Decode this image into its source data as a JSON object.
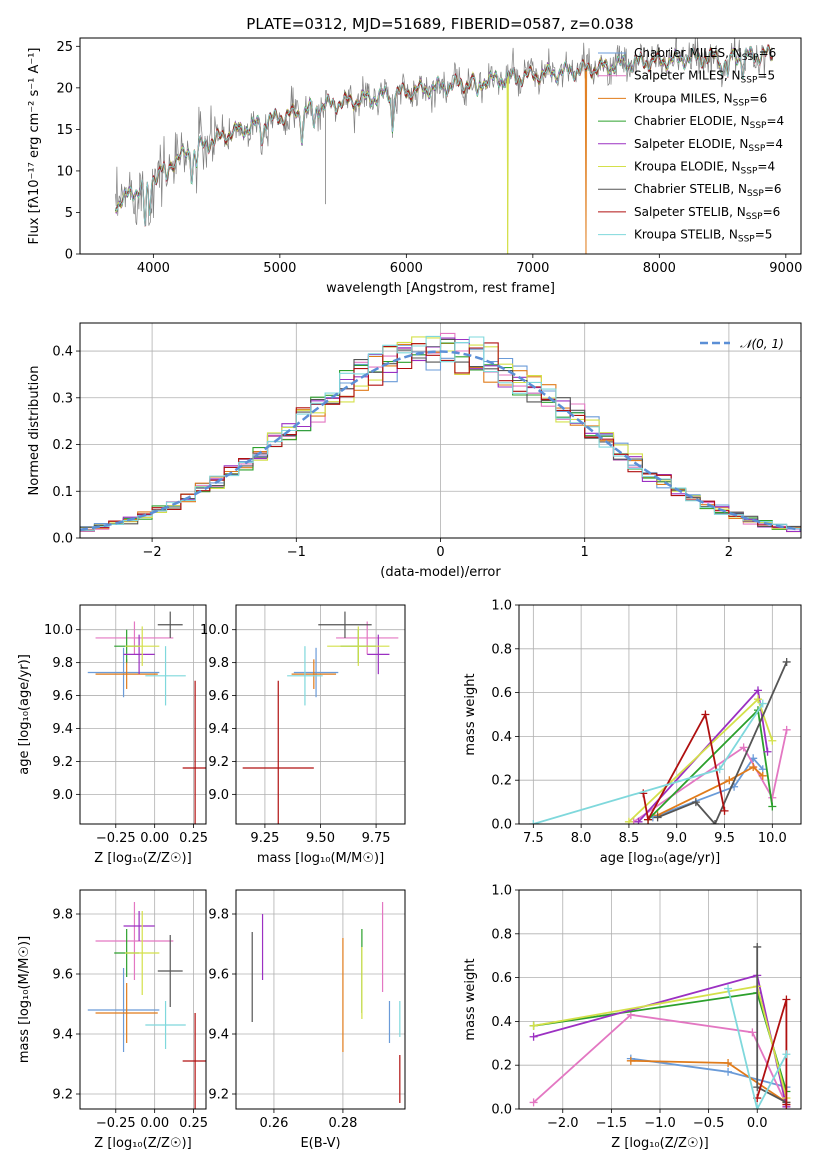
{
  "figure": {
    "title": "PLATE=0312, MJD=51689, FIBERID=0587, z=0.038"
  },
  "colors": {
    "Chabrier MILES": "#6a9bd8",
    "Salpeter MILES": "#e377c2",
    "Kroupa MILES": "#e07b1a",
    "Chabrier ELODIE": "#2ca02c",
    "Salpeter ELODIE": "#9b30c2",
    "Kroupa ELODIE": "#d4e04a",
    "Chabrier STELIB": "#555555",
    "Salpeter STELIB": "#b01010",
    "Kroupa STELIB": "#7fd8dc",
    "data": "#808080",
    "gauss": "#5b8fd6"
  },
  "chart_data": [
    {
      "type": "line",
      "id": "spectrum",
      "title": "PLATE=0312, MJD=51689, FIBERID=0587, z=0.038",
      "xlabel": "wavelength [Angstrom, rest frame]",
      "ylabel": "Flux [fλ10⁻¹⁷ erg cm⁻² s⁻¹ A⁻¹]",
      "xlim": [
        3420,
        9120
      ],
      "ylim": [
        0,
        26
      ],
      "xticks": [
        4000,
        5000,
        6000,
        7000,
        8000,
        9000
      ],
      "yticks": [
        0,
        5,
        10,
        15,
        20,
        25
      ],
      "grid": false,
      "legend_position": "top-right",
      "legend": [
        "Chabrier MILES, N_SSP=6",
        "Salpeter MILES, N_SSP=5",
        "Kroupa MILES, N_SSP=6",
        "Chabrier ELODIE, N_SSP=4",
        "Salpeter ELODIE, N_SSP=4",
        "Kroupa ELODIE, N_SSP=4",
        "Chabrier STELIB, N_SSP=6",
        "Salpeter STELIB, N_SSP=6",
        "Kroupa STELIB, N_SSP=5"
      ],
      "continuum": {
        "x": [
          3700,
          3900,
          4100,
          4300,
          4600,
          5000,
          5400,
          5800,
          6200,
          6600,
          7000,
          7400,
          7800,
          8200,
          8600,
          8900
        ],
        "y": [
          6,
          8,
          10.5,
          12.5,
          14.5,
          16.5,
          18,
          19,
          20,
          20.8,
          21.5,
          22.2,
          23,
          23.5,
          23.8,
          24
        ]
      },
      "cutoffs": [
        {
          "model": "Kroupa MILES",
          "x": 7420
        },
        {
          "model": "Kroupa ELODIE",
          "x": 6800
        }
      ]
    },
    {
      "type": "line",
      "id": "residuals",
      "xlabel": "(data-model)/error",
      "ylabel": "Normed distribution",
      "xlim": [
        -2.5,
        2.5
      ],
      "ylim": [
        0,
        0.46
      ],
      "xticks": [
        -2,
        -1,
        0,
        1,
        2
      ],
      "yticks": [
        0.0,
        0.1,
        0.2,
        0.3,
        0.4
      ],
      "grid": true,
      "legend_position": "top-right",
      "legend": [
        "𝒩(0, 1)"
      ],
      "series": [
        {
          "name": "𝒩(0, 1)",
          "style": "dashed",
          "mu": 0,
          "sigma": 1
        }
      ],
      "bin_width": 0.1
    },
    {
      "type": "scatter",
      "id": "age-vs-Z",
      "xlabel": "Z [log₁₀(Z/Z☉)]",
      "ylabel": "age  [log₁₀(age/yr)]",
      "xlim": [
        -0.48,
        0.33
      ],
      "ylim": [
        8.82,
        10.15
      ],
      "xticks": [
        -0.25,
        0.0,
        0.25
      ],
      "yticks": [
        9.0,
        9.2,
        9.4,
        9.6,
        9.8,
        10.0
      ],
      "grid": true,
      "points": [
        {
          "model": "Chabrier MILES",
          "x": -0.2,
          "y": 9.74,
          "xerr": 0.23,
          "yerr": 0.15
        },
        {
          "model": "Salpeter MILES",
          "x": -0.13,
          "y": 9.95,
          "xerr": 0.25,
          "yerr": 0.1
        },
        {
          "model": "Kroupa MILES",
          "x": -0.18,
          "y": 9.73,
          "xerr": 0.2,
          "yerr": 0.09
        },
        {
          "model": "Chabrier ELODIE",
          "x": -0.18,
          "y": 9.9,
          "xerr": 0.08,
          "yerr": 0.1
        },
        {
          "model": "Salpeter ELODIE",
          "x": -0.1,
          "y": 9.85,
          "xerr": 0.1,
          "yerr": 0.12
        },
        {
          "model": "Kroupa ELODIE",
          "x": -0.08,
          "y": 9.9,
          "xerr": 0.11,
          "yerr": 0.12
        },
        {
          "model": "Chabrier STELIB",
          "x": 0.1,
          "y": 10.03,
          "xerr": 0.08,
          "yerr": 0.08
        },
        {
          "model": "Salpeter STELIB",
          "x": 0.26,
          "y": 9.16,
          "xerr": 0.08,
          "yerr": 0.53
        },
        {
          "model": "Kroupa STELIB",
          "x": 0.07,
          "y": 9.72,
          "xerr": 0.13,
          "yerr": 0.18
        }
      ]
    },
    {
      "type": "scatter",
      "id": "age-vs-mass",
      "xlabel": "mass [log₁₀(M/M☉)]",
      "ylabel": "",
      "xlim": [
        9.12,
        9.88
      ],
      "ylim": [
        8.82,
        10.15
      ],
      "xticks": [
        9.25,
        9.5,
        9.75
      ],
      "yticks": [
        9.0,
        9.2,
        9.4,
        9.6,
        9.8,
        10.0
      ],
      "grid": true,
      "points": [
        {
          "model": "Chabrier MILES",
          "x": 9.48,
          "y": 9.74,
          "xerr": 0.1,
          "yerr": 0.15
        },
        {
          "model": "Salpeter MILES",
          "x": 9.71,
          "y": 9.95,
          "xerr": 0.14,
          "yerr": 0.1
        },
        {
          "model": "Kroupa MILES",
          "x": 9.47,
          "y": 9.73,
          "xerr": 0.1,
          "yerr": 0.09
        },
        {
          "model": "Chabrier ELODIE",
          "x": 9.67,
          "y": 9.9,
          "xerr": 0.08,
          "yerr": 0.1
        },
        {
          "model": "Salpeter ELODIE",
          "x": 9.76,
          "y": 9.85,
          "xerr": 0.05,
          "yerr": 0.12
        },
        {
          "model": "Kroupa ELODIE",
          "x": 9.67,
          "y": 9.9,
          "xerr": 0.14,
          "yerr": 0.12
        },
        {
          "model": "Chabrier STELIB",
          "x": 9.61,
          "y": 10.03,
          "xerr": 0.12,
          "yerr": 0.08
        },
        {
          "model": "Salpeter STELIB",
          "x": 9.31,
          "y": 9.16,
          "xerr": 0.16,
          "yerr": 0.53
        },
        {
          "model": "Kroupa STELIB",
          "x": 9.43,
          "y": 9.72,
          "xerr": 0.08,
          "yerr": 0.18
        }
      ]
    },
    {
      "type": "line",
      "id": "weight-vs-age",
      "xlabel": "age  [log₁₀(age/yr)]",
      "ylabel": "mass weight",
      "xlim": [
        7.35,
        10.3
      ],
      "ylim": [
        0,
        1.0
      ],
      "xticks": [
        7.5,
        8.0,
        8.5,
        9.0,
        9.5,
        10.0
      ],
      "yticks": [
        0.0,
        0.2,
        0.4,
        0.6,
        0.8,
        1.0
      ],
      "grid": true,
      "series": [
        {
          "name": "Chabrier MILES",
          "x": [
            8.75,
            9.6,
            9.8,
            9.9
          ],
          "y": [
            0.03,
            0.17,
            0.3,
            0.25
          ]
        },
        {
          "name": "Salpeter MILES",
          "x": [
            8.55,
            9.7,
            10.0,
            10.15
          ],
          "y": [
            0.01,
            0.35,
            0.12,
            0.43
          ]
        },
        {
          "name": "Kroupa MILES",
          "x": [
            8.8,
            9.55,
            9.8,
            9.9
          ],
          "y": [
            0.04,
            0.2,
            0.26,
            0.22
          ]
        },
        {
          "name": "Chabrier ELODIE",
          "x": [
            8.7,
            9.85,
            10.0
          ],
          "y": [
            0.02,
            0.52,
            0.08
          ]
        },
        {
          "name": "Salpeter ELODIE",
          "x": [
            8.6,
            9.85,
            9.95
          ],
          "y": [
            0.01,
            0.61,
            0.33
          ]
        },
        {
          "name": "Kroupa ELODIE",
          "x": [
            8.5,
            9.85,
            10.0
          ],
          "y": [
            0.01,
            0.57,
            0.38
          ]
        },
        {
          "name": "Chabrier STELIB",
          "x": [
            8.8,
            9.2,
            9.4,
            10.15
          ],
          "y": [
            0.03,
            0.1,
            0.0,
            0.74
          ]
        },
        {
          "name": "Salpeter STELIB",
          "x": [
            8.65,
            8.7,
            9.3,
            9.5
          ],
          "y": [
            0.14,
            0.02,
            0.5,
            0.06
          ]
        },
        {
          "name": "Kroupa STELIB",
          "x": [
            7.5,
            9.45,
            9.9
          ],
          "y": [
            0.0,
            0.25,
            0.55
          ]
        }
      ]
    },
    {
      "type": "scatter",
      "id": "mass-vs-Z",
      "xlabel": "Z [log₁₀(Z/Z☉)]",
      "ylabel": "mass [log₁₀(M/M☉)]",
      "xlim": [
        -0.48,
        0.33
      ],
      "ylim": [
        9.15,
        9.88
      ],
      "xticks": [
        -0.25,
        0.0,
        0.25
      ],
      "yticks": [
        9.2,
        9.4,
        9.6,
        9.8
      ],
      "grid": true,
      "points": [
        {
          "model": "Chabrier MILES",
          "x": -0.2,
          "y": 9.48,
          "xerr": 0.23,
          "yerr": 0.14
        },
        {
          "model": "Salpeter MILES",
          "x": -0.13,
          "y": 9.71,
          "xerr": 0.25,
          "yerr": 0.13
        },
        {
          "model": "Kroupa MILES",
          "x": -0.18,
          "y": 9.47,
          "xerr": 0.2,
          "yerr": 0.1
        },
        {
          "model": "Chabrier ELODIE",
          "x": -0.18,
          "y": 9.67,
          "xerr": 0.08,
          "yerr": 0.08
        },
        {
          "model": "Salpeter ELODIE",
          "x": -0.1,
          "y": 9.76,
          "xerr": 0.1,
          "yerr": 0.05
        },
        {
          "model": "Kroupa ELODIE",
          "x": -0.08,
          "y": 9.67,
          "xerr": 0.11,
          "yerr": 0.14
        },
        {
          "model": "Chabrier STELIB",
          "x": 0.1,
          "y": 9.61,
          "xerr": 0.08,
          "yerr": 0.12
        },
        {
          "model": "Salpeter STELIB",
          "x": 0.26,
          "y": 9.31,
          "xerr": 0.08,
          "yerr": 0.16
        },
        {
          "model": "Kroupa STELIB",
          "x": 0.07,
          "y": 9.43,
          "xerr": 0.13,
          "yerr": 0.08
        }
      ]
    },
    {
      "type": "scatter",
      "id": "mass-vs-EBV",
      "xlabel": "E(B-V)",
      "ylabel": "",
      "xlim": [
        0.249,
        0.298
      ],
      "ylim": [
        9.15,
        9.88
      ],
      "xticks": [
        0.26,
        0.28
      ],
      "yticks": [
        9.2,
        9.4,
        9.6,
        9.8
      ],
      "grid": true,
      "points": [
        {
          "model": "Chabrier MILES",
          "x": 0.2935,
          "y": 9.44,
          "xerr": 0.0,
          "yerr": 0.07
        },
        {
          "model": "Salpeter MILES",
          "x": 0.2915,
          "y": 9.69,
          "xerr": 0.0,
          "yerr": 0.15
        },
        {
          "model": "Kroupa MILES",
          "x": 0.28,
          "y": 9.53,
          "xerr": 0.0,
          "yerr": 0.19
        },
        {
          "model": "Chabrier ELODIE",
          "x": 0.2855,
          "y": 9.61,
          "xerr": 0.0,
          "yerr": 0.14
        },
        {
          "model": "Salpeter ELODIE",
          "x": 0.2567,
          "y": 9.69,
          "xerr": 0.0,
          "yerr": 0.11
        },
        {
          "model": "Kroupa ELODIE",
          "x": 0.2855,
          "y": 9.57,
          "xerr": 0.0,
          "yerr": 0.12
        },
        {
          "model": "Chabrier STELIB",
          "x": 0.2537,
          "y": 9.59,
          "xerr": 0.0,
          "yerr": 0.15
        },
        {
          "model": "Salpeter STELIB",
          "x": 0.2965,
          "y": 9.25,
          "xerr": 0.0,
          "yerr": 0.08
        },
        {
          "model": "Kroupa STELIB",
          "x": 0.2965,
          "y": 9.45,
          "xerr": 0.0,
          "yerr": 0.06
        }
      ]
    },
    {
      "type": "line",
      "id": "weight-vs-Z",
      "xlabel": "Z [log₁₀(Z/Z☉)]",
      "ylabel": "mass weight",
      "xlim": [
        -2.45,
        0.45
      ],
      "ylim": [
        0,
        1.0
      ],
      "xticks": [
        -2.0,
        -1.5,
        -1.0,
        -0.5,
        0.0
      ],
      "yticks": [
        0.0,
        0.2,
        0.4,
        0.6,
        0.8,
        1.0
      ],
      "grid": true,
      "series": [
        {
          "name": "Chabrier MILES",
          "x": [
            -1.3,
            -0.3,
            0.3
          ],
          "y": [
            0.23,
            0.17,
            0.1
          ]
        },
        {
          "name": "Salpeter MILES",
          "x": [
            -2.3,
            -1.3,
            -0.05,
            0.3
          ],
          "y": [
            0.03,
            0.43,
            0.35,
            0.02
          ]
        },
        {
          "name": "Kroupa MILES",
          "x": [
            -1.3,
            -0.3,
            0.3
          ],
          "y": [
            0.22,
            0.21,
            0.03
          ]
        },
        {
          "name": "Chabrier ELODIE",
          "x": [
            -2.3,
            0.0,
            0.3
          ],
          "y": [
            0.38,
            0.53,
            0.08
          ]
        },
        {
          "name": "Salpeter ELODIE",
          "x": [
            -2.3,
            0.0,
            0.3
          ],
          "y": [
            0.33,
            0.61,
            0.01
          ]
        },
        {
          "name": "Kroupa ELODIE",
          "x": [
            -2.3,
            0.0,
            0.3
          ],
          "y": [
            0.38,
            0.56,
            0.05
          ]
        },
        {
          "name": "Chabrier STELIB",
          "x": [
            0.0,
            0.0,
            0.3
          ],
          "y": [
            0.74,
            0.1,
            0.03
          ]
        },
        {
          "name": "Salpeter STELIB",
          "x": [
            0.0,
            0.3,
            0.3
          ],
          "y": [
            0.05,
            0.5,
            0.02
          ]
        },
        {
          "name": "Kroupa STELIB",
          "x": [
            -0.3,
            0.0,
            0.3
          ],
          "y": [
            0.55,
            0.0,
            0.25
          ]
        }
      ]
    }
  ]
}
